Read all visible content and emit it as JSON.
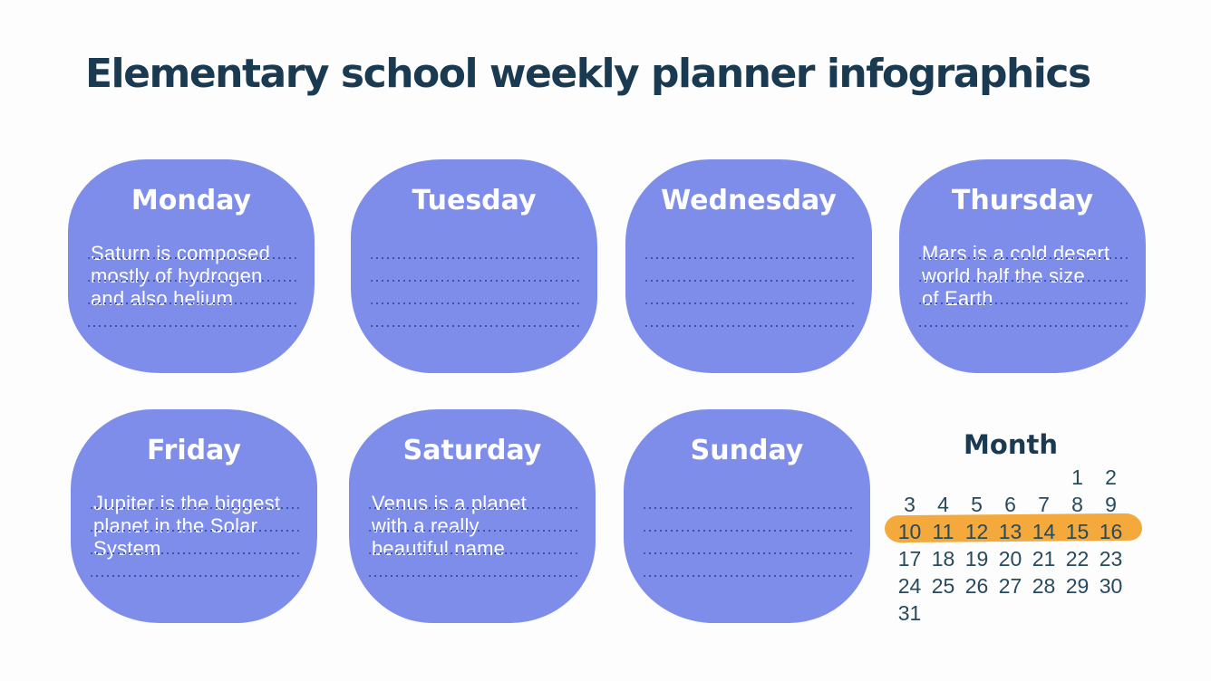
{
  "page": {
    "title": "Elementary school weekly planner infographics"
  },
  "colors": {
    "background": "#fdfdfe",
    "title_ink": "#1a3a52",
    "card_fill": "#7d8de9",
    "card_text": "#ffffff",
    "dotted_line": "#3d52ae",
    "calendar_text": "#264a5e",
    "week_highlight": "#f3a93c"
  },
  "cards": [
    {
      "day": "Monday",
      "note_lines": [
        "Saturn is composed",
        "mostly of hydrogen",
        "and also helium",
        ""
      ]
    },
    {
      "day": "Tuesday",
      "note_lines": [
        "",
        "",
        "",
        ""
      ]
    },
    {
      "day": "Wednesday",
      "note_lines": [
        "",
        "",
        "",
        ""
      ]
    },
    {
      "day": "Thursday",
      "note_lines": [
        "Mars is a cold desert",
        "world half the size",
        "of Earth",
        ""
      ]
    },
    {
      "day": "Friday",
      "note_lines": [
        "Jupiter is the biggest",
        "planet in the Solar",
        "System",
        ""
      ]
    },
    {
      "day": "Saturday",
      "note_lines": [
        "Venus is a planet",
        "with a really",
        "beautiful name",
        ""
      ]
    },
    {
      "day": "Sunday",
      "note_lines": [
        "",
        "",
        "",
        ""
      ]
    }
  ],
  "calendar": {
    "title": "Month",
    "weeks": [
      [
        "",
        "",
        "",
        "",
        "",
        1,
        2
      ],
      [
        3,
        4,
        5,
        6,
        7,
        8,
        9
      ],
      [
        10,
        11,
        12,
        13,
        14,
        15,
        16
      ],
      [
        17,
        18,
        19,
        20,
        21,
        22,
        23
      ],
      [
        24,
        25,
        26,
        27,
        28,
        29,
        30
      ],
      [
        31,
        "",
        "",
        "",
        "",
        "",
        ""
      ]
    ],
    "highlighted_week": [
      10,
      11,
      12,
      13,
      14,
      15,
      16
    ]
  }
}
